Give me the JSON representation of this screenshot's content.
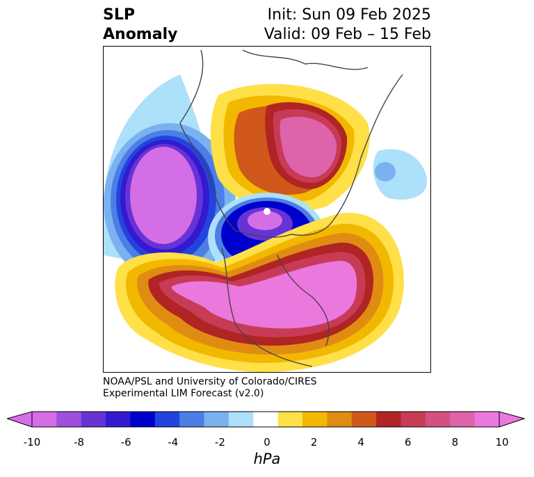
{
  "title": {
    "left_line1": "SLP",
    "left_line2": "Anomaly",
    "right_line1": "Init: Sun 09 Feb 2025",
    "right_line2": "Valid: 09 Feb – 15 Feb"
  },
  "credit": {
    "line1": "NOAA/PSL and University of Colorado/CIRES",
    "line2": "Experimental LIM Forecast (v2.0)"
  },
  "colorbar": {
    "units": "hPa",
    "tick_labels": [
      "-10",
      "-8",
      "-6",
      "-4",
      "-2",
      "0",
      "2",
      "4",
      "6",
      "8",
      "10"
    ],
    "colors": [
      "#d46ee6",
      "#9e4fdc",
      "#6633d6",
      "#3319d0",
      "#0000cc",
      "#2244dd",
      "#4c7ee6",
      "#7ab2f0",
      "#ade0fa",
      "#ffffff",
      "#ffe048",
      "#f2b800",
      "#e08c12",
      "#cf581a",
      "#b02424",
      "#c83b56",
      "#d45080",
      "#dd64aa",
      "#eb78dd"
    ]
  }
}
